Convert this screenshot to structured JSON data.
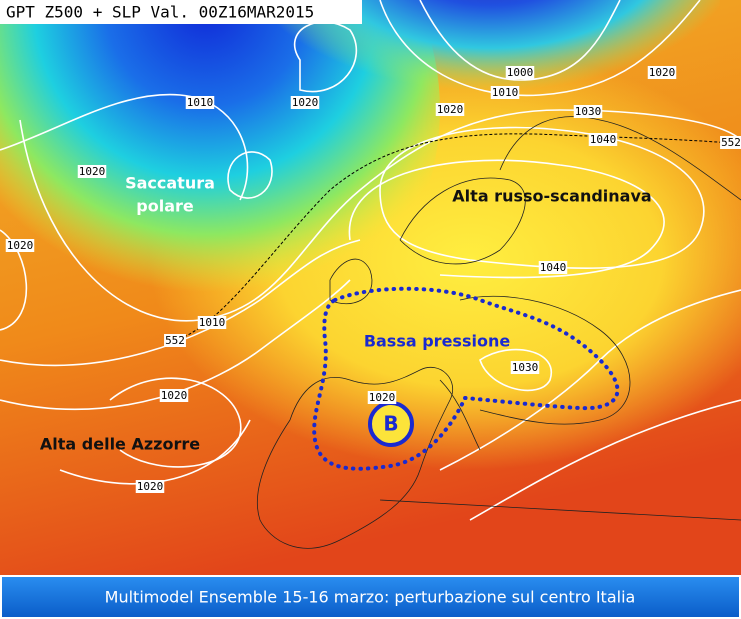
{
  "title": "GPT Z500 + SLP Val. 00Z16MAR2015",
  "annotations": {
    "trough": [
      "Saccatura",
      "polare"
    ],
    "high_east": "Alta russo-scandinava",
    "low_area": "Bassa pressione",
    "azores": "Alta delle Azzorre",
    "low_symbol": "B"
  },
  "isobar_labels": [
    1010,
    1020,
    1000,
    1010,
    1020,
    1020,
    1030,
    1040,
    552,
    1020,
    1020,
    1040,
    1010,
    552,
    1030,
    1020,
    1020,
    1020
  ],
  "caption": "Multimodel Ensemble 15-16 marzo: perturbazione sul centro Italia"
}
